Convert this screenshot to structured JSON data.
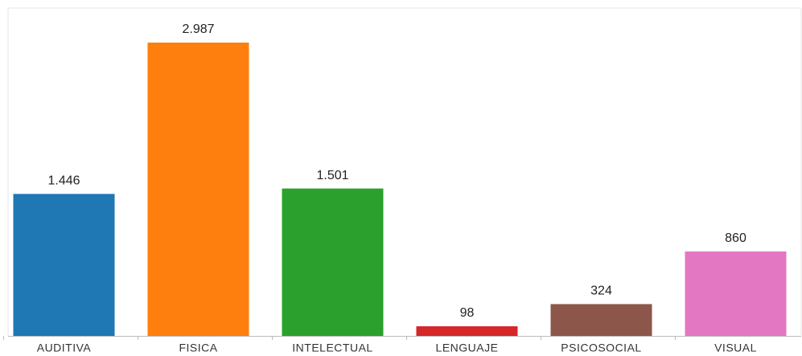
{
  "chart_data": {
    "type": "bar",
    "categories": [
      "AUDITIVA",
      "FISICA",
      "INTELECTUAL",
      "LENGUAJE",
      "PSICOSOCIAL",
      "VISUAL"
    ],
    "values": [
      1446,
      2987,
      1501,
      98,
      324,
      860
    ],
    "value_labels": [
      "1.446",
      "2.987",
      "1.501",
      "98",
      "324",
      "860"
    ],
    "colors": [
      "#1f77b4",
      "#ff7f0e",
      "#2ca02c",
      "#d62728",
      "#8c564b",
      "#e377c2"
    ]
  }
}
